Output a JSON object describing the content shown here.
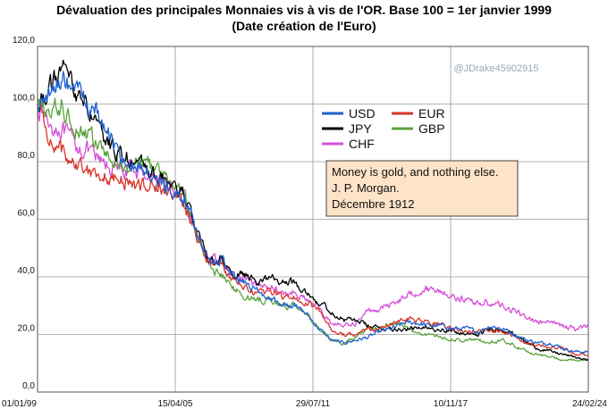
{
  "chart_data": {
    "type": "line",
    "title": "Dévaluation des principales Monnaies vis à vis de l'OR. Base 100 = 1er janvier 1999",
    "subtitle": "(Date création de l'Euro)",
    "watermark": "@JDrake45902915",
    "ylim": [
      0,
      120
    ],
    "y_ticks": [
      "0,0",
      "20,0",
      "40,0",
      "60,0",
      "80,0",
      "100,0",
      "120,0"
    ],
    "x_ticks": [
      "01/01/99",
      "15/04/05",
      "29/07/11",
      "10/11/17",
      "24/02/24"
    ],
    "grid": true,
    "legend_position": "top-right",
    "annotation": [
      "Money is gold, and nothing else.",
      "J. P. Morgan.",
      "Décembre 1912"
    ],
    "annotation_fill": "#fde3c8",
    "series": [
      {
        "name": "USD",
        "color": "#1f5fd0",
        "values": [
          100,
          103,
          110,
          105,
          100,
          96,
          88,
          82,
          78,
          76,
          72,
          70,
          68,
          55,
          45,
          46,
          40,
          38,
          35,
          33,
          30,
          30,
          27,
          22,
          18,
          17,
          18,
          19,
          21,
          22,
          24,
          24,
          23,
          23,
          22,
          22,
          21,
          23,
          22,
          20,
          18,
          17,
          17,
          15,
          14,
          14
        ]
      },
      {
        "name": "EUR",
        "color": "#d8342a",
        "values": [
          100,
          88,
          84,
          80,
          78,
          76,
          74,
          73,
          72,
          72,
          71,
          68,
          65,
          54,
          45,
          44,
          38,
          36,
          34,
          35,
          33,
          33,
          31,
          28,
          22,
          20,
          20,
          22,
          22,
          24,
          25,
          25,
          24,
          23,
          22,
          21,
          21,
          22,
          21,
          19,
          17,
          16,
          16,
          15,
          13,
          13
        ]
      },
      {
        "name": "JPY",
        "color": "#000000",
        "values": [
          100,
          105,
          112,
          106,
          99,
          90,
          85,
          82,
          80,
          77,
          74,
          72,
          68,
          56,
          45,
          46,
          40,
          41,
          38,
          40,
          38,
          38,
          35,
          31,
          28,
          25,
          25,
          23,
          22,
          22,
          22,
          22,
          22,
          22,
          21,
          20,
          20,
          22,
          22,
          20,
          17,
          15,
          14,
          13,
          12,
          11
        ]
      },
      {
        "name": "GBP",
        "color": "#5aa23c",
        "values": [
          100,
          97,
          99,
          93,
          90,
          85,
          80,
          79,
          79,
          80,
          76,
          72,
          68,
          55,
          43,
          41,
          36,
          33,
          32,
          32,
          30,
          30,
          27,
          22,
          18,
          17,
          19,
          22,
          22,
          24,
          23,
          20,
          20,
          19,
          18,
          18,
          18,
          17,
          18,
          16,
          14,
          13,
          12,
          11,
          11,
          11
        ]
      },
      {
        "name": "CHF",
        "color": "#d54fd8",
        "values": [
          100,
          93,
          91,
          86,
          84,
          80,
          78,
          77,
          77,
          76,
          74,
          70,
          66,
          55,
          45,
          46,
          40,
          39,
          36,
          37,
          34,
          35,
          32,
          29,
          24,
          23,
          24,
          28,
          29,
          31,
          33,
          35,
          36,
          35,
          33,
          32,
          31,
          31,
          30,
          28,
          26,
          24,
          24,
          23,
          22,
          23
        ]
      }
    ]
  }
}
